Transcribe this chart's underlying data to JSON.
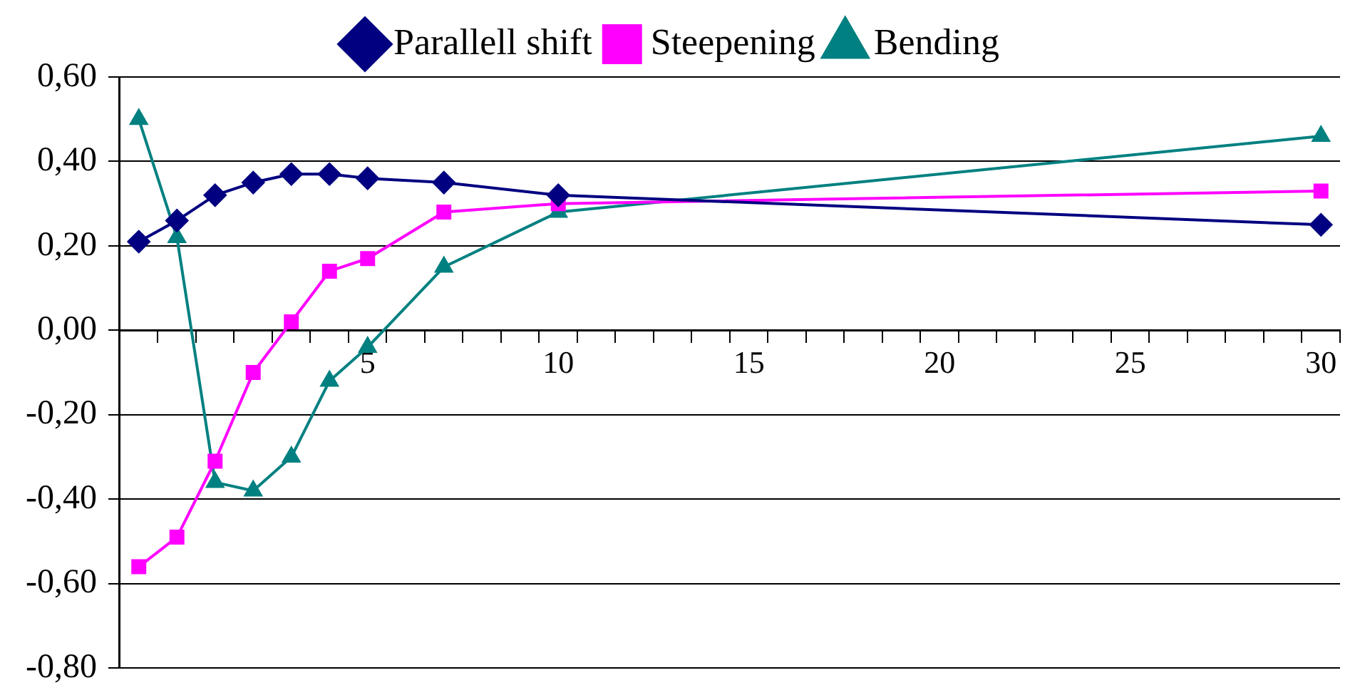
{
  "chart_data": {
    "type": "line",
    "x": [
      -1,
      0,
      1,
      2,
      3,
      4,
      5,
      7,
      10,
      30
    ],
    "series": [
      {
        "name": "Parallell shift",
        "color": "#000080",
        "marker": "diamond",
        "values": [
          0.21,
          0.26,
          0.32,
          0.35,
          0.37,
          0.37,
          0.36,
          0.35,
          0.32,
          0.25
        ]
      },
      {
        "name": "Steepening",
        "color": "#ff00ff",
        "marker": "square",
        "values": [
          -0.56,
          -0.49,
          -0.31,
          -0.1,
          0.02,
          0.14,
          0.17,
          0.28,
          0.3,
          0.33
        ]
      },
      {
        "name": "Bending",
        "color": "#008080",
        "marker": "triangle",
        "values": [
          0.5,
          0.22,
          -0.36,
          -0.38,
          -0.3,
          -0.12,
          -0.04,
          0.15,
          0.28,
          0.46
        ]
      }
    ],
    "xlim": [
      -1.5,
      30.5
    ],
    "xticks": [
      {
        "value": -1.5,
        "label": null
      },
      {
        "value": -0.5,
        "label": null
      },
      {
        "value": 0.5,
        "label": null
      },
      {
        "value": 1.5,
        "label": null
      },
      {
        "value": 2.5,
        "label": null
      },
      {
        "value": 3.5,
        "label": null
      },
      {
        "value": 4.5,
        "label": null
      },
      5,
      {
        "value": 5.5,
        "label": null
      },
      {
        "value": 6.5,
        "label": null
      },
      {
        "value": 7.5,
        "label": null
      },
      {
        "value": 8.5,
        "label": null
      },
      {
        "value": 9.5,
        "label": null
      },
      10,
      {
        "value": 10.5,
        "label": null
      },
      {
        "value": 11.5,
        "label": null
      },
      {
        "value": 12.5,
        "label": null
      },
      {
        "value": 13.5,
        "label": null
      },
      {
        "value": 14.5,
        "label": null
      },
      15,
      {
        "value": 15.5,
        "label": null
      },
      {
        "value": 16.5,
        "label": null
      },
      {
        "value": 17.5,
        "label": null
      },
      {
        "value": 18.5,
        "label": null
      },
      {
        "value": 19.5,
        "label": null
      },
      20,
      {
        "value": 20.5,
        "label": null
      },
      {
        "value": 21.5,
        "label": null
      },
      {
        "value": 22.5,
        "label": null
      },
      {
        "value": 23.5,
        "label": null
      },
      {
        "value": 24.5,
        "label": null
      },
      25,
      {
        "value": 25.5,
        "label": null
      },
      {
        "value": 26.5,
        "label": null
      },
      {
        "value": 27.5,
        "label": null
      },
      {
        "value": 28.5,
        "label": null
      },
      {
        "value": 29.5,
        "label": null
      },
      30,
      {
        "value": 30.5,
        "label": null
      }
    ],
    "ylim": [
      -0.8,
      0.6
    ],
    "yticks": [
      {
        "value": -0.8,
        "label": "-0,80"
      },
      {
        "value": -0.6,
        "label": "-0,60"
      },
      {
        "value": -0.4,
        "label": "-0,40"
      },
      {
        "value": -0.2,
        "label": "-0,20"
      },
      {
        "value": 0,
        "label": "0,00"
      },
      {
        "value": 0.2,
        "label": "0,20"
      },
      {
        "value": 0.4,
        "label": "0,40"
      },
      {
        "value": 0.6,
        "label": "0,60"
      }
    ],
    "grid": "y",
    "legend": "top",
    "line_style": "solid"
  }
}
